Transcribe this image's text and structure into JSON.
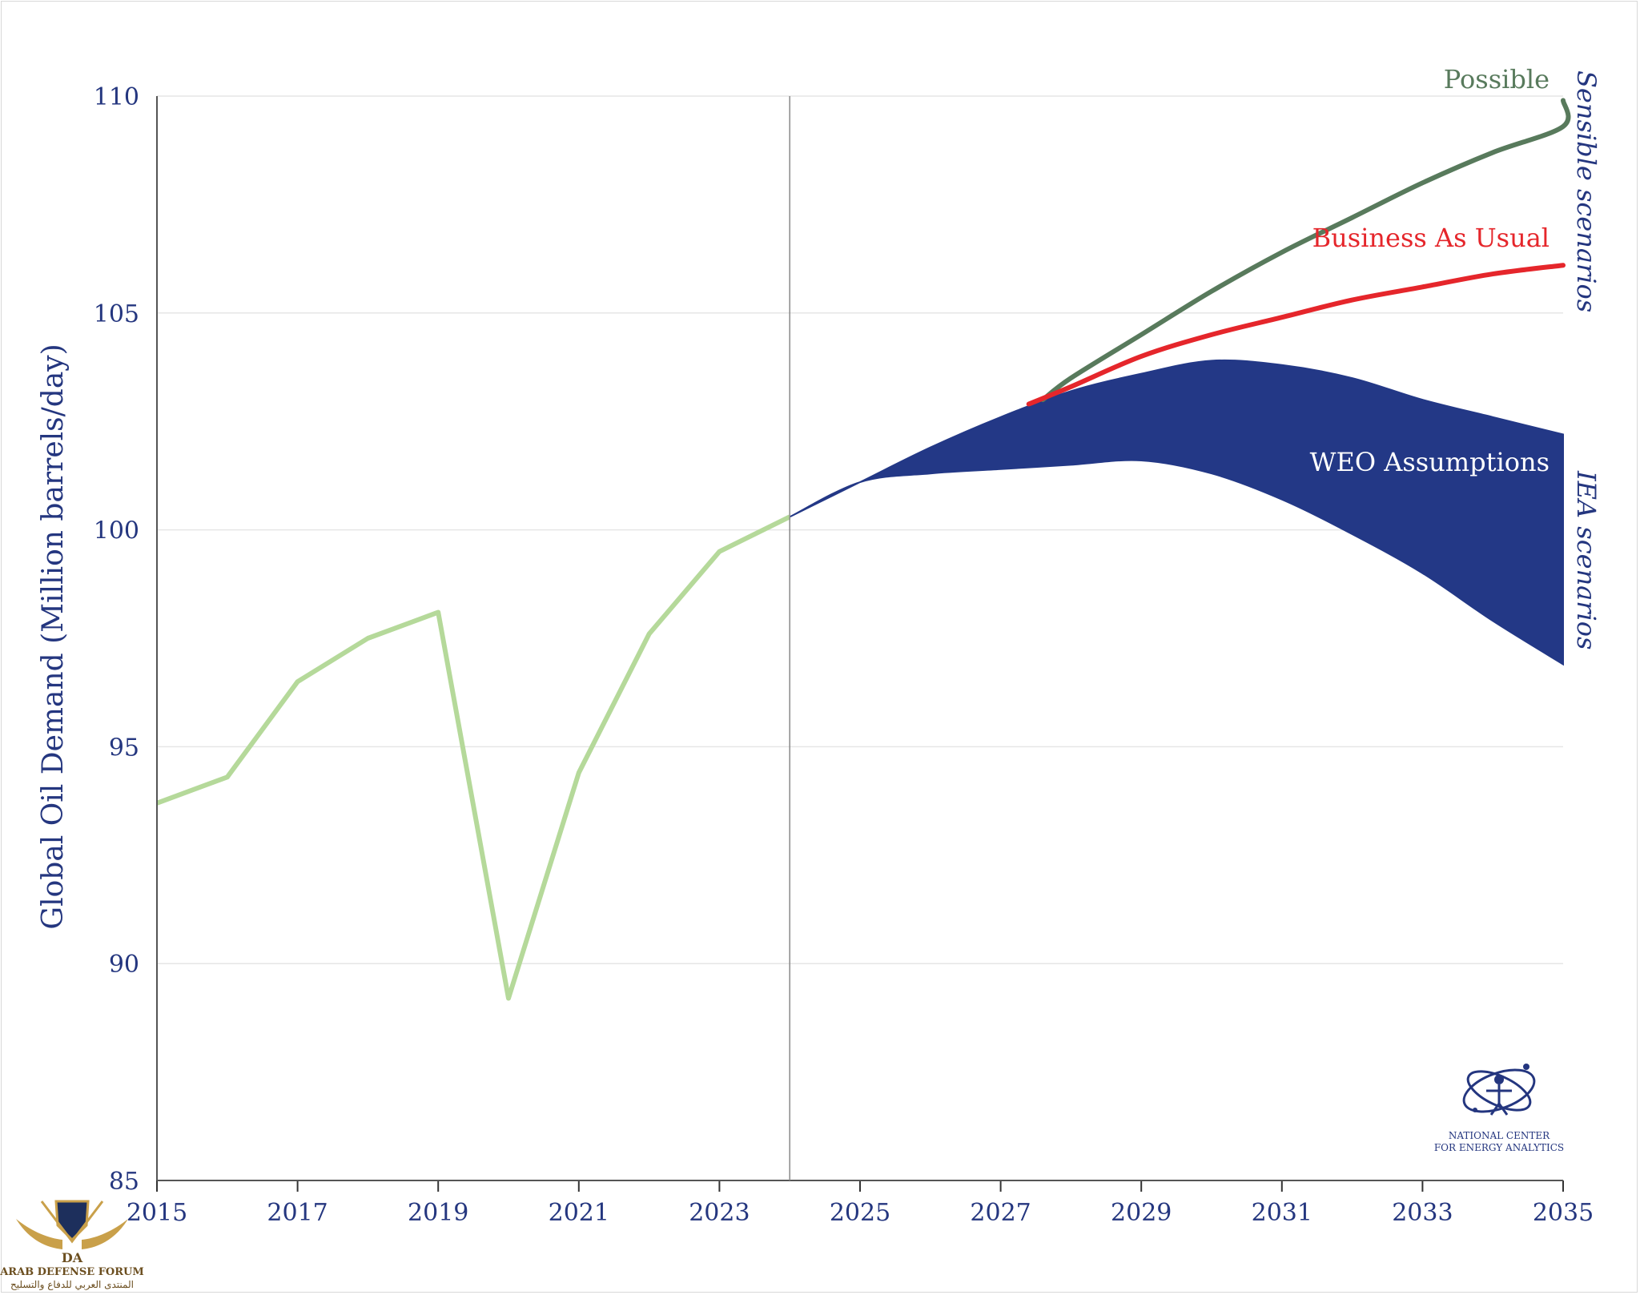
{
  "chart_data": {
    "type": "line",
    "ylabel": "Global Oil Demand (Million barrels/day)",
    "ylim": [
      85,
      110
    ],
    "xlim": [
      2015,
      2035
    ],
    "yticks": [
      "85",
      "90",
      "95",
      "100",
      "105",
      "110"
    ],
    "xticks": [
      "2015",
      "2017",
      "2019",
      "2021",
      "2023",
      "2025",
      "2027",
      "2029",
      "2031",
      "2033",
      "2035"
    ],
    "grid": "horizontal",
    "divider_x": 2024,
    "series": [
      {
        "kind": "history",
        "color": "#b5d99a",
        "points": [
          [
            2015,
            93.7
          ],
          [
            2016,
            94.3
          ],
          [
            2016.5,
            95.4
          ],
          [
            2017,
            96.5
          ],
          [
            2018,
            97.5
          ],
          [
            2019,
            98.1
          ],
          [
            2020,
            89.2
          ],
          [
            2021,
            94.4
          ],
          [
            2022,
            97.6
          ],
          [
            2023,
            99.5
          ],
          [
            2024,
            100.3
          ]
        ]
      },
      {
        "name": "Possible",
        "color": "#587a5c",
        "points": [
          [
            2027.6,
            103.0
          ],
          [
            2028,
            103.5
          ],
          [
            2029,
            104.5
          ],
          [
            2030,
            105.5
          ],
          [
            2031,
            106.4
          ],
          [
            2032,
            107.2
          ],
          [
            2033,
            108.0
          ],
          [
            2034,
            108.7
          ],
          [
            2035,
            109.3
          ],
          [
            2035.0,
            109.9
          ]
        ]
      },
      {
        "name": "Business As Usual",
        "color": "#e5262b",
        "points": [
          [
            2027.4,
            102.9
          ],
          [
            2028,
            103.3
          ],
          [
            2029,
            104.0
          ],
          [
            2030,
            104.5
          ],
          [
            2031,
            104.9
          ],
          [
            2032,
            105.3
          ],
          [
            2033,
            105.6
          ],
          [
            2034,
            105.9
          ],
          [
            2035,
            106.1
          ]
        ]
      },
      {
        "name": "WEO Assumptions",
        "kind": "band",
        "color": "#233886",
        "upper": [
          [
            2024,
            100.3
          ],
          [
            2025,
            101.1
          ],
          [
            2026,
            101.9
          ],
          [
            2027,
            102.6
          ],
          [
            2028,
            103.2
          ],
          [
            2029,
            103.6
          ],
          [
            2030,
            103.9
          ],
          [
            2031,
            103.8
          ],
          [
            2032,
            103.5
          ],
          [
            2033,
            103.0
          ],
          [
            2034,
            102.6
          ],
          [
            2035,
            102.2
          ]
        ],
        "lower": [
          [
            2024,
            100.3
          ],
          [
            2025,
            101.1
          ],
          [
            2026,
            101.3
          ],
          [
            2027,
            101.4
          ],
          [
            2028,
            101.5
          ],
          [
            2029,
            101.6
          ],
          [
            2030,
            101.3
          ],
          [
            2031,
            100.7
          ],
          [
            2032,
            99.9
          ],
          [
            2033,
            99.0
          ],
          [
            2034,
            97.9
          ],
          [
            2035,
            96.9
          ]
        ]
      }
    ],
    "annotations": {
      "sensible": "Sensible scenarios",
      "iea": "IEA scenarios"
    }
  },
  "logo": {
    "line1": "NATIONAL CENTER",
    "line2": "FOR ENERGY ANALYTICS"
  },
  "watermark": {
    "monogram": "DA",
    "english": "ARAB DEFENSE FORUM",
    "arabic": "المنتدى العربي للدفاع والتسليح"
  }
}
